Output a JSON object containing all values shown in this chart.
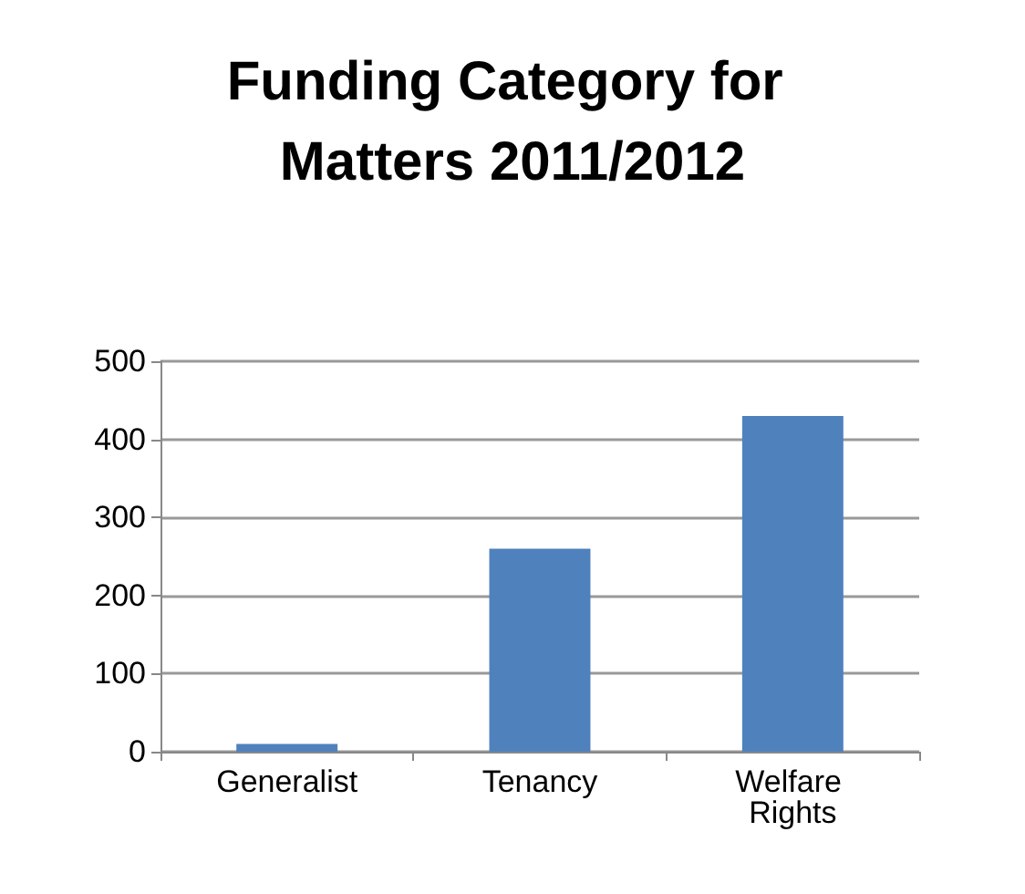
{
  "chart_data": {
    "type": "bar",
    "title": "Funding Category for Matters 2011/2012",
    "categories": [
      "Generalist",
      "Tenancy",
      "Welfare Rights"
    ],
    "values": [
      10,
      260,
      430
    ],
    "color": "#4f81bd",
    "ylim": [
      0,
      500
    ],
    "yticks": [
      0,
      100,
      200,
      300,
      400,
      500
    ],
    "grid": "y"
  }
}
